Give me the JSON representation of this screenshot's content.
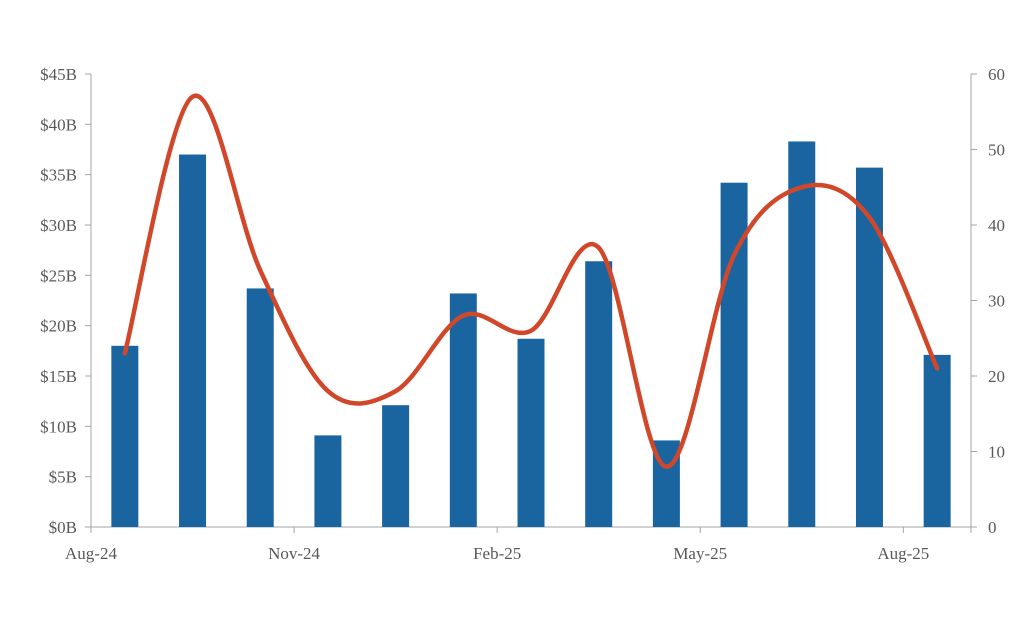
{
  "chart_data": {
    "type": "bar",
    "title": "",
    "xlabel": "",
    "ylabel": "",
    "y2label": "",
    "categories": [
      "Aug-24",
      "Sep-24",
      "Oct-24",
      "Nov-24",
      "Dec-24",
      "Jan-25",
      "Feb-25",
      "Mar-25",
      "Apr-25",
      "May-25",
      "Jun-25",
      "Jul-25",
      "Aug-25"
    ],
    "x_tick_labels": [
      "Aug-24",
      "Nov-24",
      "Feb-25",
      "May-25",
      "Aug-25"
    ],
    "series": [
      {
        "kind": "bar",
        "axis": "left",
        "values": [
          18,
          37,
          23.7,
          9.1,
          12.1,
          23.2,
          18.7,
          26.4,
          8.6,
          34.2,
          38.3,
          35.7,
          17.1
        ]
      },
      {
        "kind": "line",
        "axis": "right",
        "smooth": true,
        "values": [
          23,
          57,
          34,
          18,
          18,
          28,
          26,
          37,
          8,
          36,
          45,
          41,
          21
        ]
      }
    ],
    "ylim": [
      0,
      45
    ],
    "y_ticks": [
      "$0B",
      "$5B",
      "$10B",
      "$15B",
      "$20B",
      "$25B",
      "$30B",
      "$35B",
      "$40B",
      "$45B"
    ],
    "y2lim": [
      0,
      60
    ],
    "y2_ticks": [
      "0",
      "10",
      "20",
      "30",
      "40",
      "50",
      "60"
    ],
    "colors": {
      "bar": "#1a65a0",
      "line": "#d0472a",
      "axis": "#a6a6a6",
      "text": "#595959"
    },
    "grid": false,
    "legend": "none"
  }
}
